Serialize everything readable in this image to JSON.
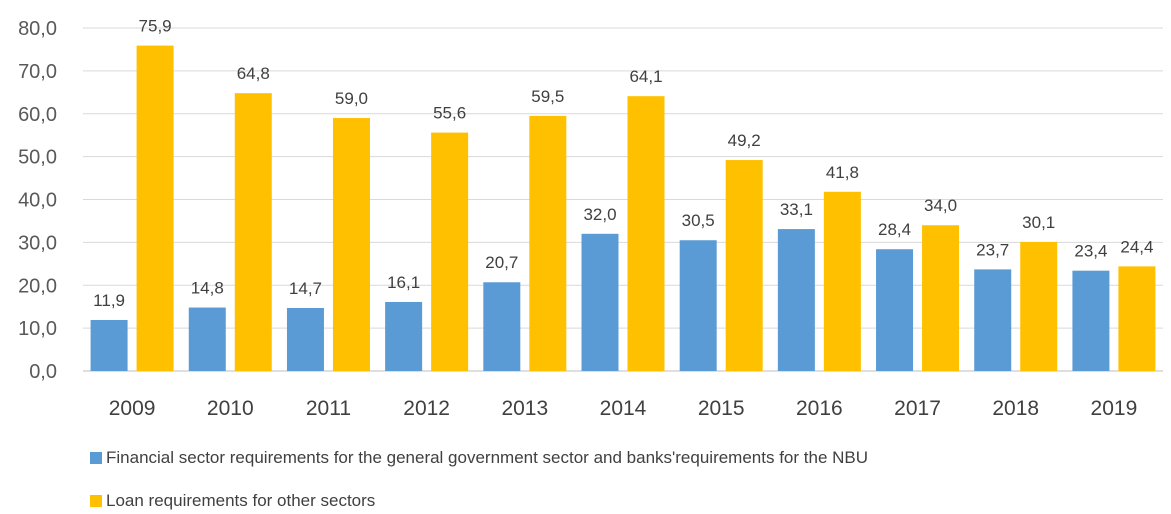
{
  "chart_data": {
    "type": "bar",
    "categories": [
      "2009",
      "2010",
      "2011",
      "2012",
      "2013",
      "2014",
      "2015",
      "2016",
      "2017",
      "2018",
      "2019"
    ],
    "series": [
      {
        "name": "Financial sector requirements for the general government sector and banks'requirements for the NBU",
        "color": "#5b9bd5",
        "values": [
          11.9,
          14.8,
          14.7,
          16.1,
          20.7,
          32.0,
          30.5,
          33.1,
          28.4,
          23.7,
          23.4
        ],
        "labels": [
          "11,9",
          "14,8",
          "14,7",
          "16,1",
          "20,7",
          "32,0",
          "30,5",
          "33,1",
          "28,4",
          "23,7",
          "23,4"
        ]
      },
      {
        "name": "Loan requirements for other sectors",
        "color": "#ffc000",
        "values": [
          75.9,
          64.8,
          59.0,
          55.6,
          59.5,
          64.1,
          49.2,
          41.8,
          34.0,
          30.1,
          24.4
        ],
        "labels": [
          "75,9",
          "64,8",
          "59,0",
          "55,6",
          "59,5",
          "64,1",
          "49,2",
          "41,8",
          "34,0",
          "30,1",
          "24,4"
        ]
      }
    ],
    "ylim": [
      0,
      80
    ],
    "yticks": [
      0,
      10,
      20,
      30,
      40,
      50,
      60,
      70,
      80
    ],
    "ytick_labels": [
      "0,0",
      "10,0",
      "20,0",
      "30,0",
      "40,0",
      "50,0",
      "60,0",
      "70,0",
      "80,0"
    ],
    "grid": true,
    "legend_position": "bottom-left",
    "title": "",
    "xlabel": "",
    "ylabel": ""
  }
}
